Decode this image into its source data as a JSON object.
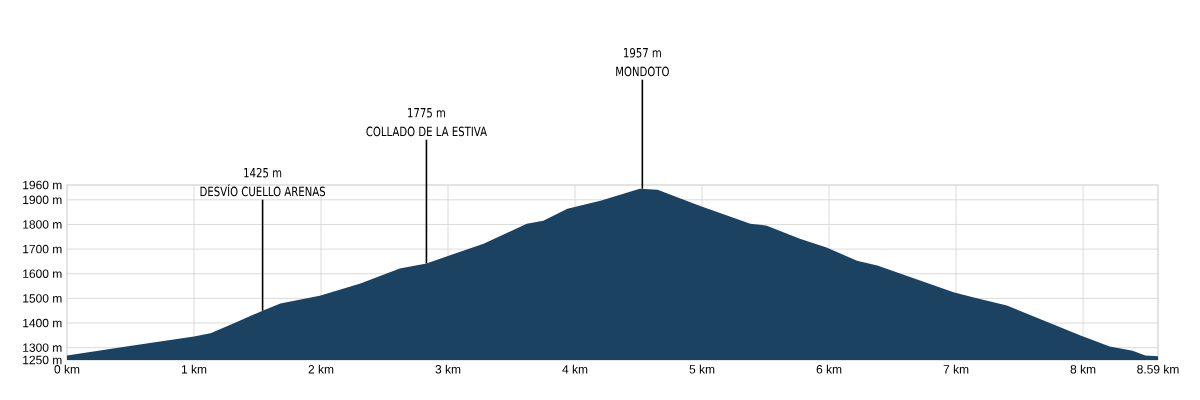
{
  "chart_data": {
    "type": "area",
    "color": "#1b4261",
    "grid": true,
    "x": [
      0,
      0.52,
      1.0,
      1.13,
      1.31,
      1.54,
      1.68,
      1.99,
      2.31,
      2.62,
      2.83,
      3.28,
      3.62,
      3.75,
      3.94,
      4.2,
      4.51,
      4.65,
      4.98,
      5.38,
      5.51,
      5.77,
      5.98,
      6.22,
      6.38,
      6.98,
      7.14,
      7.4,
      7.98,
      8.21,
      8.39,
      8.49,
      8.59
    ],
    "values": [
      1268,
      1309,
      1345,
      1359,
      1398,
      1450,
      1479,
      1511,
      1560,
      1621,
      1642,
      1722,
      1803,
      1815,
      1864,
      1896,
      1945,
      1941,
      1876,
      1803,
      1795,
      1742,
      1706,
      1653,
      1633,
      1525,
      1504,
      1471,
      1349,
      1305,
      1288,
      1268,
      1265
    ],
    "xlim": [
      0,
      8.59
    ],
    "ylim": [
      1250,
      1960
    ],
    "xticks": [
      {
        "value": 0,
        "label": "0 km"
      },
      {
        "value": 1,
        "label": "1 km"
      },
      {
        "value": 2,
        "label": "2 km"
      },
      {
        "value": 3,
        "label": "3 km"
      },
      {
        "value": 4,
        "label": "4 km"
      },
      {
        "value": 5,
        "label": "5 km"
      },
      {
        "value": 6,
        "label": "6 km"
      },
      {
        "value": 7,
        "label": "7 km"
      },
      {
        "value": 8,
        "label": "8 km"
      },
      {
        "value": 8.59,
        "label": "8.59 km"
      }
    ],
    "yticks": [
      {
        "value": 1250,
        "label": "1250 m"
      },
      {
        "value": 1300,
        "label": "1300 m"
      },
      {
        "value": 1400,
        "label": "1400 m"
      },
      {
        "value": 1500,
        "label": "1500 m"
      },
      {
        "value": 1600,
        "label": "1600 m"
      },
      {
        "value": 1700,
        "label": "1700 m"
      },
      {
        "value": 1800,
        "label": "1800 m"
      },
      {
        "value": 1900,
        "label": "1900 m"
      },
      {
        "value": 1960,
        "label": "1960 m"
      }
    ],
    "annotations": [
      "1425 m",
      {
        "text": "DESVÍO CUELLO ARENAS",
        "x": 1.54,
        "y": 1450
      },
      "1775 m",
      {
        "text": "COLLADO DE LA ESTIVA",
        "x": 2.83,
        "y": 1642
      },
      "1957 m",
      {
        "text": "MONDOTO",
        "x": 4.53,
        "y": 1945
      }
    ]
  }
}
